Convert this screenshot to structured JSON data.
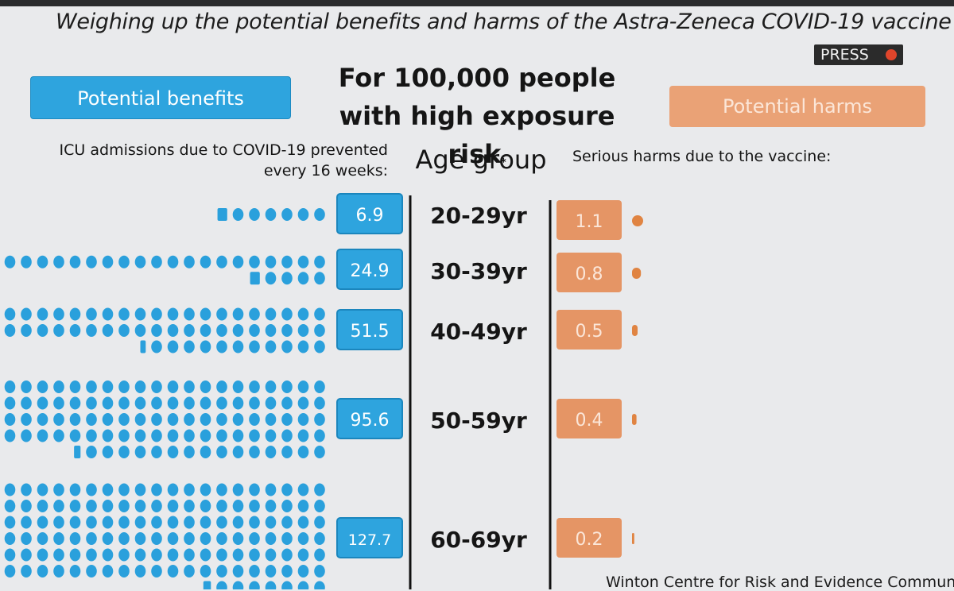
{
  "page": {
    "title": "Weighing up the potential benefits and harms of the Astra-Zeneca COVID-19 vaccine",
    "press_label": "PRESS",
    "heading": "For 100,000 people\nwith high exposure risk",
    "heading_mark": "*",
    "benefits_button": "Potential benefits",
    "harms_button": "Potential harms",
    "benefits_label": "ICU admissions due to COVID-19 prevented\nevery 16 weeks:",
    "age_label": "Age group",
    "harms_label": "Serious harms due to the vaccine:",
    "credit": "Winton Centre for Risk and Evidence Communicati"
  },
  "colors": {
    "benefit": "#2ea4de",
    "benefit_dot": "#2aa0dc",
    "harm": "#e59565",
    "harm_dot": "#e08442",
    "divider": "#111111"
  },
  "chart_data": {
    "type": "bar",
    "categories": [
      "20-29yr",
      "30-39yr",
      "40-49yr",
      "50-59yr",
      "60-69yr"
    ],
    "series": [
      {
        "name": "ICU admissions due to COVID-19 prevented every 16 weeks",
        "values": [
          6.9,
          24.9,
          51.5,
          95.6,
          127.7
        ]
      },
      {
        "name": "Serious harms due to the vaccine",
        "values": [
          1.1,
          0.8,
          0.5,
          0.4,
          0.2
        ]
      }
    ]
  }
}
